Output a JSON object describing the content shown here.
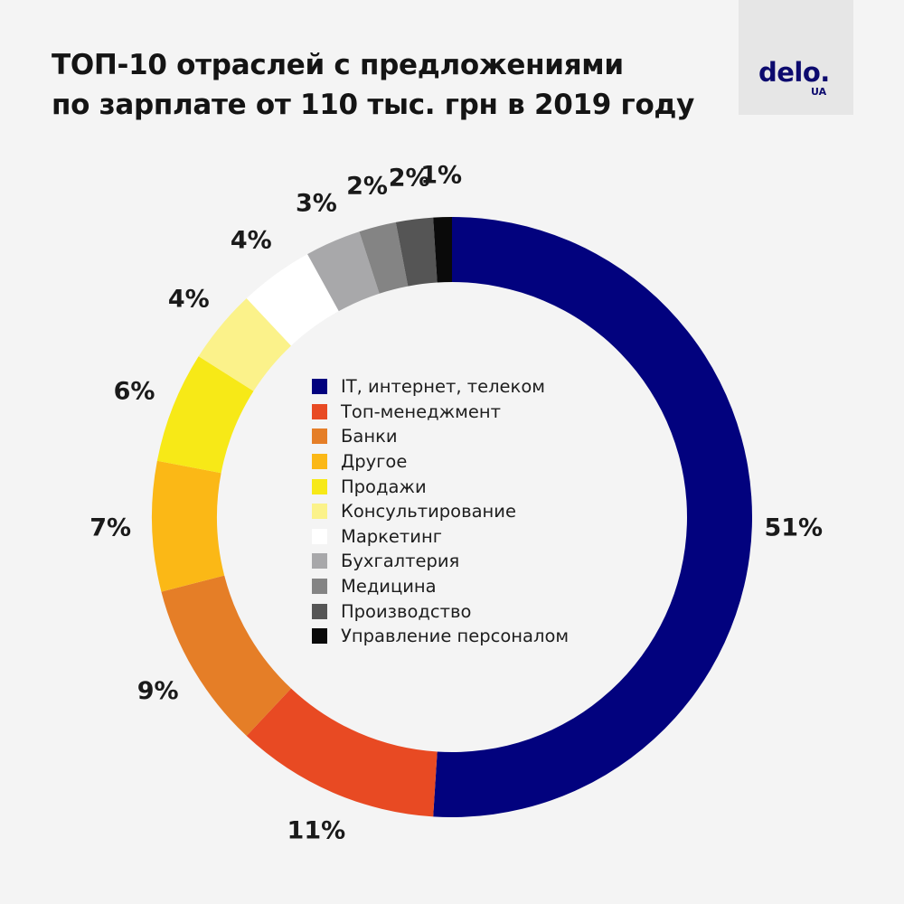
{
  "title": {
    "line1": "ТОП-10 отраслей с предложениями",
    "line2": "по зарплате от 110 тыс. грн в 2019 году"
  },
  "logo": {
    "main": "delo.",
    "sub": "UA"
  },
  "chart_data": {
    "type": "pie",
    "title": "ТОП-10 отраслей с предложениями по зарплате от 110 тыс. грн в 2019 году",
    "legend_placement": "center",
    "categories": [
      "IT, интернет, телеком",
      "Топ-менеджмент",
      "Банки",
      "Другое",
      "Продажи",
      "Консультирование",
      "Маркетинг",
      "Бухгалтерия",
      "Медицина",
      "Производство",
      "Управление персоналом"
    ],
    "values": [
      51,
      11,
      9,
      7,
      6,
      4,
      4,
      3,
      2,
      2,
      1
    ],
    "labels": [
      "51%",
      "11%",
      "9%",
      "7%",
      "6%",
      "4%",
      "4%",
      "3%",
      "2%",
      "2%",
      "1%"
    ],
    "colors": [
      "#02027e",
      "#e84a23",
      "#e57e27",
      "#fbb816",
      "#f7e917",
      "#fbf28a",
      "#ffffff",
      "#a8a8aa",
      "#848484",
      "#555555",
      "#0a0a0a"
    ]
  }
}
